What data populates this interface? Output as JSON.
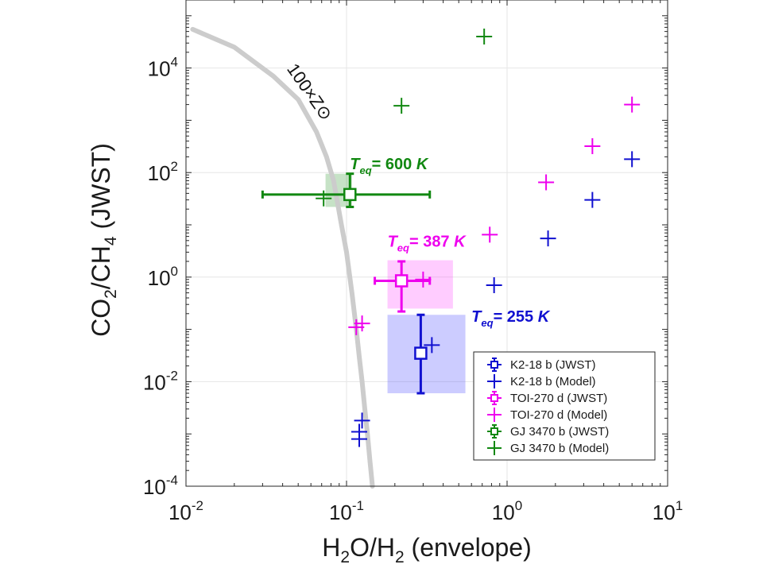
{
  "chart_data": {
    "type": "scatter",
    "xscale": "log",
    "yscale": "log",
    "xlim": [
      0.01,
      10
    ],
    "ylim": [
      0.0001,
      200000
    ],
    "x_ticks": [
      {
        "value": 0.01,
        "base": "10",
        "exp": "-2"
      },
      {
        "value": 0.1,
        "base": "10",
        "exp": "-1"
      },
      {
        "value": 1,
        "base": "10",
        "exp": "0"
      },
      {
        "value": 10,
        "base": "10",
        "exp": "1"
      }
    ],
    "y_ticks": [
      {
        "value": 0.0001,
        "base": "10",
        "exp": "-4"
      },
      {
        "value": 0.01,
        "base": "10",
        "exp": "-2"
      },
      {
        "value": 1,
        "base": "10",
        "exp": "0"
      },
      {
        "value": 100,
        "base": "10",
        "exp": "2"
      },
      {
        "value": 10000,
        "base": "10",
        "exp": "4"
      }
    ],
    "xlabel": {
      "p1": "H",
      "s1": "2",
      "p2": "O/H",
      "s2": "2",
      "p3": " (envelope)"
    },
    "ylabel": {
      "p1": "CO",
      "s1": "2",
      "p2": "/CH",
      "s2": "4",
      "p3": " (JWST)"
    },
    "grid": true,
    "curve": {
      "label": "100×Z⊙",
      "color": "#cccccc",
      "points": [
        [
          0.011,
          55000
        ],
        [
          0.02,
          25000
        ],
        [
          0.035,
          7000
        ],
        [
          0.05,
          2500
        ],
        [
          0.065,
          600
        ],
        [
          0.075,
          200
        ],
        [
          0.083,
          70
        ],
        [
          0.093,
          10
        ],
        [
          0.1,
          3
        ],
        [
          0.108,
          0.5
        ],
        [
          0.115,
          0.1
        ],
        [
          0.12,
          0.03
        ],
        [
          0.125,
          0.01
        ],
        [
          0.13,
          0.003
        ],
        [
          0.135,
          0.001
        ],
        [
          0.14,
          0.0003
        ],
        [
          0.145,
          0.0001
        ]
      ]
    },
    "regions": [
      {
        "series": "GJ 3470 b",
        "x": [
          0.074,
          0.108
        ],
        "y": [
          22,
          95
        ],
        "color": "#1a8a1a"
      },
      {
        "series": "TOI-270 d",
        "x": [
          0.18,
          0.46
        ],
        "y": [
          0.25,
          2.1
        ],
        "color": "#ff33ff"
      },
      {
        "series": "K2-18 b",
        "x": [
          0.18,
          0.55
        ],
        "y": [
          0.006,
          0.19
        ],
        "color": "#3333ff"
      }
    ],
    "series": [
      {
        "name": "K2-18 b (JWST)",
        "kind": "jwst",
        "color": "#1010d0",
        "points": [
          {
            "x": 0.29,
            "y": 0.035,
            "xlo": 0.28,
            "xhi": 0.3,
            "ylo": 0.006,
            "yhi": 0.19
          }
        ]
      },
      {
        "name": "K2-18 b (Model)",
        "kind": "model",
        "color": "#1010d0",
        "points": [
          {
            "x": 0.12,
            "y": 0.0008
          },
          {
            "x": 0.12,
            "y": 0.0011
          },
          {
            "x": 0.125,
            "y": 0.0018
          },
          {
            "x": 0.34,
            "y": 0.05
          },
          {
            "x": 0.83,
            "y": 0.7
          },
          {
            "x": 1.8,
            "y": 5.5
          },
          {
            "x": 3.4,
            "y": 30
          },
          {
            "x": 6.0,
            "y": 180
          }
        ]
      },
      {
        "name": "TOI-270 d (JWST)",
        "kind": "jwst",
        "color": "#ee00ee",
        "points": [
          {
            "x": 0.22,
            "y": 0.85,
            "xlo": 0.15,
            "xhi": 0.33,
            "ylo": 0.22,
            "yhi": 2.0
          }
        ]
      },
      {
        "name": "TOI-270 d (Model)",
        "kind": "model",
        "color": "#ee00ee",
        "points": [
          {
            "x": 0.115,
            "y": 0.11
          },
          {
            "x": 0.125,
            "y": 0.13
          },
          {
            "x": 0.3,
            "y": 0.9
          },
          {
            "x": 0.78,
            "y": 6.5
          },
          {
            "x": 1.75,
            "y": 65
          },
          {
            "x": 3.4,
            "y": 320
          },
          {
            "x": 6.0,
            "y": 2000
          }
        ]
      },
      {
        "name": "GJ 3470 b (JWST)",
        "kind": "jwst",
        "color": "#118811",
        "points": [
          {
            "x": 0.105,
            "y": 38,
            "xlo": 0.03,
            "xhi": 0.33,
            "ylo": 22,
            "yhi": 95
          }
        ]
      },
      {
        "name": "GJ 3470 b (Model)",
        "kind": "model",
        "color": "#118811",
        "points": [
          {
            "x": 0.072,
            "y": 32
          },
          {
            "x": 0.22,
            "y": 1900
          },
          {
            "x": 0.72,
            "y": 40000
          }
        ]
      }
    ],
    "annotations": [
      {
        "T": "T",
        "sub": "eq",
        "text": "= 600 ",
        "unit": "K",
        "color": "#118811",
        "x": 0.105,
        "y": 115
      },
      {
        "T": "T",
        "sub": "eq",
        "text": "= 387 ",
        "unit": "K",
        "color": "#ee00ee",
        "x": 0.18,
        "y": 3.8
      },
      {
        "T": "T",
        "sub": "eq",
        "text": "= 255 ",
        "unit": "K",
        "color": "#1010d0",
        "x": 0.6,
        "y": 0.14
      }
    ],
    "legend": {
      "position": "bottom-right"
    }
  }
}
